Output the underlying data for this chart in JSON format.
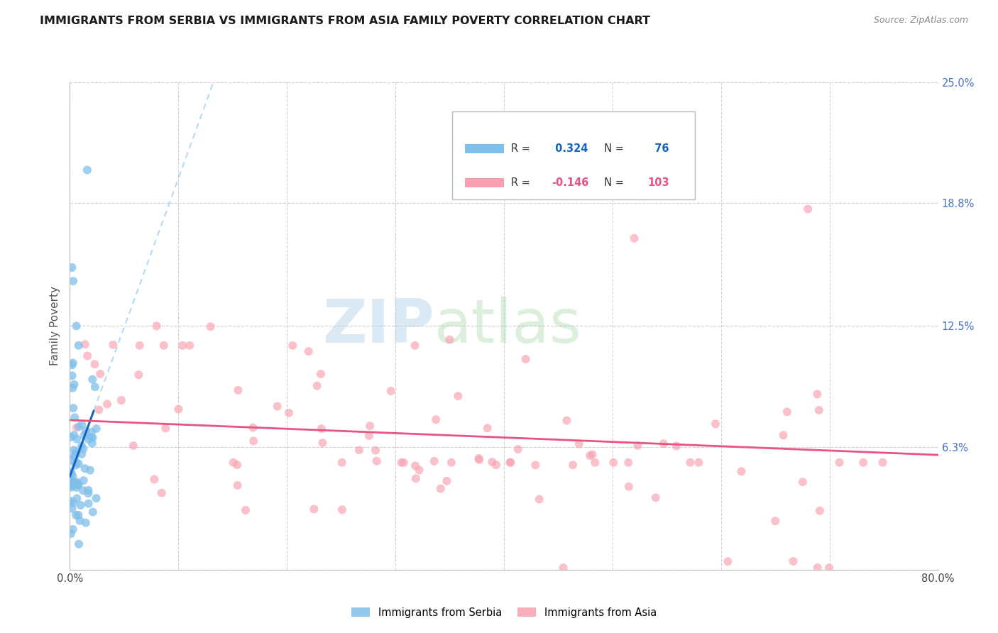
{
  "title": "IMMIGRANTS FROM SERBIA VS IMMIGRANTS FROM ASIA FAMILY POVERTY CORRELATION CHART",
  "source": "Source: ZipAtlas.com",
  "ylabel": "Family Poverty",
  "xlim": [
    0.0,
    0.8
  ],
  "ylim": [
    0.0,
    0.25
  ],
  "serbia_color": "#7fbfea",
  "asia_color": "#f8a0b0",
  "serbia_line_color": "#1565c0",
  "serbia_dash_color": "#90caf9",
  "asia_line_color": "#e75480",
  "serbia_R": 0.324,
  "serbia_N": 76,
  "asia_R": -0.146,
  "asia_N": 103,
  "legend_R_color_serbia": "#1565c0",
  "legend_N_color_serbia": "#1565c0",
  "legend_R_color_asia": "#e75480",
  "legend_N_color_asia": "#e75480",
  "ytick_vals": [
    0.0,
    0.063,
    0.125,
    0.188,
    0.25
  ],
  "ytick_labels": [
    "",
    "6.3%",
    "12.5%",
    "18.8%",
    "25.0%"
  ],
  "watermark_zip_color": "#b8d8f0",
  "watermark_atlas_color": "#c8e8c8"
}
